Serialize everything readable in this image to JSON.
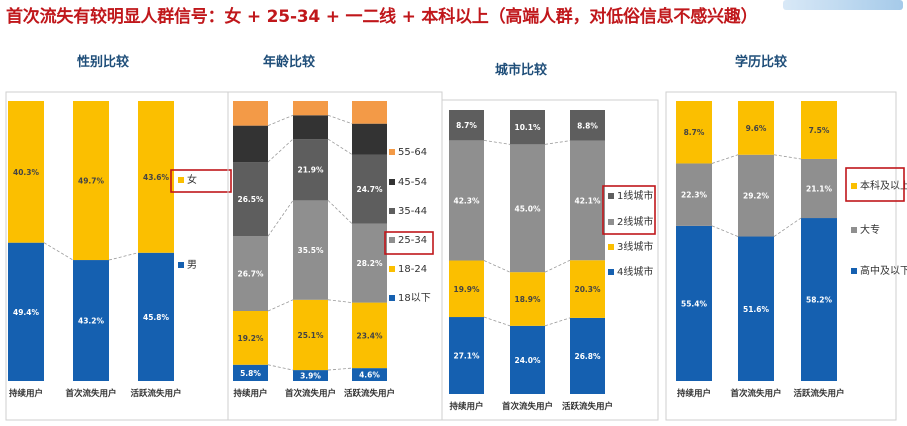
{
  "headline": "首次流失有较明显人群信号：女 + 25-34 + 一二线 + 本科以上（高端人群，对低俗信息不感兴趣）",
  "colors": {
    "headline": "#c0171b",
    "title": "#1f4e79",
    "highlight_box": "#c0171b"
  },
  "chart_data": [
    {
      "type": "bar",
      "stacked": true,
      "title": "性别比较",
      "categories": [
        "持续用户",
        "首次流失用户",
        "活跃流失用户"
      ],
      "ylim": [
        0,
        100
      ],
      "legend_position": "right",
      "highlight": "女",
      "series": [
        {
          "name": "男",
          "color": "#1560b0",
          "values": [
            49.4,
            43.2,
            45.8
          ],
          "labels": [
            "49.4%",
            "43.2%",
            "45.8%"
          ]
        },
        {
          "name": "女",
          "color": "#fbbf00",
          "values": [
            40.3,
            49.7,
            43.6
          ],
          "labels": [
            "40.3%",
            "49.7%",
            "43.6%"
          ]
        }
      ]
    },
    {
      "type": "bar",
      "stacked": true,
      "title": "年龄比较",
      "categories": [
        "持续用户",
        "首次流失用户",
        "活跃流失用户"
      ],
      "ylim": [
        0,
        100
      ],
      "legend_position": "right",
      "highlight": "25-34",
      "series": [
        {
          "name": "18以下",
          "color": "#1560b0",
          "values": [
            5.8,
            3.9,
            4.6
          ],
          "labels": [
            "5.8%",
            "3.9%",
            "4.6%"
          ]
        },
        {
          "name": "18-24",
          "color": "#fbbf00",
          "values": [
            19.2,
            25.1,
            23.4
          ],
          "labels": [
            "19.2%",
            "25.1%",
            "23.4%"
          ]
        },
        {
          "name": "25-34",
          "color": "#8f8f8f",
          "values": [
            26.7,
            35.5,
            28.2
          ],
          "labels": [
            "26.7%",
            "35.5%",
            "28.2%"
          ]
        },
        {
          "name": "35-44",
          "color": "#5e5e5e",
          "values": [
            26.5,
            21.9,
            24.7
          ],
          "labels": [
            "26.5%",
            "21.9%",
            "24.7%"
          ]
        },
        {
          "name": "45-54",
          "color": "#333333",
          "values": [
            13.0,
            8.5,
            11.0
          ],
          "labels": [
            "",
            "",
            ""
          ]
        },
        {
          "name": "55-64",
          "color": "#f39a47",
          "values": [
            0.6,
            0.4,
            0.5
          ],
          "labels": [
            "",
            "",
            ""
          ]
        }
      ]
    },
    {
      "type": "bar",
      "stacked": true,
      "title": "城市比较",
      "categories": [
        "持续用户",
        "首次流失用户",
        "活跃流失用户"
      ],
      "ylim": [
        0,
        100
      ],
      "legend_position": "right",
      "highlight": "1线城市 / 2线城市",
      "series": [
        {
          "name": "4线城市",
          "color": "#1560b0",
          "values": [
            27.1,
            24.0,
            26.8
          ],
          "labels": [
            "27.1%",
            "24.0%",
            "26.8%"
          ]
        },
        {
          "name": "3线城市",
          "color": "#fbbf00",
          "values": [
            19.9,
            18.9,
            20.3
          ],
          "labels": [
            "19.9%",
            "18.9%",
            "20.3%"
          ]
        },
        {
          "name": "2线城市",
          "color": "#8f8f8f",
          "values": [
            42.3,
            45.0,
            42.1
          ],
          "labels": [
            "42.3%",
            "45.0%",
            "42.1%"
          ]
        },
        {
          "name": "1线城市",
          "color": "#5e5e5e",
          "values": [
            8.7,
            10.1,
            8.8
          ],
          "labels": [
            "8.7%",
            "10.1%",
            "8.8%"
          ]
        }
      ]
    },
    {
      "type": "bar",
      "stacked": true,
      "title": "学历比较",
      "categories": [
        "持续用户",
        "首次流失用户",
        "活跃流失用户"
      ],
      "ylim": [
        0,
        100
      ],
      "legend_position": "right",
      "highlight": "本科及以上",
      "series": [
        {
          "name": "高中及以下",
          "color": "#1560b0",
          "values": [
            55.4,
            51.6,
            58.2
          ],
          "labels": [
            "55.4%",
            "51.6%",
            "58.2%"
          ]
        },
        {
          "name": "大专",
          "color": "#8f8f8f",
          "values": [
            22.3,
            29.2,
            21.1
          ],
          "labels": [
            "22.3%",
            "29.2%",
            "21.1%"
          ]
        },
        {
          "name": "本科及以上",
          "color": "#fbbf00",
          "values": [
            8.7,
            9.6,
            7.5
          ],
          "labels": [
            "8.7%",
            "9.6%",
            "7.5%"
          ]
        }
      ]
    }
  ]
}
